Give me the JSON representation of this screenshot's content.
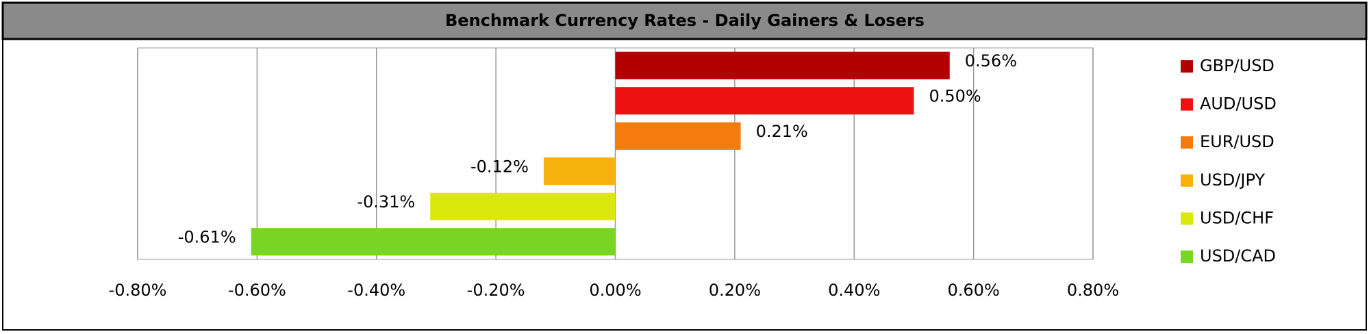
{
  "chart_data": {
    "type": "hbar",
    "title": "Benchmark Currency Rates - Daily Gainers & Losers",
    "categories": [
      "GBP/USD",
      "AUD/USD",
      "EUR/USD",
      "USD/JPY",
      "USD/CHF",
      "USD/CAD"
    ],
    "values": [
      0.56,
      0.5,
      0.21,
      -0.12,
      -0.31,
      -0.61
    ],
    "value_labels": [
      "0.56%",
      "0.50%",
      "0.21%",
      "-0.12%",
      "-0.31%",
      "-0.61%"
    ],
    "colors": [
      "#b30000",
      "#ee1111",
      "#f47b0c",
      "#f7b20c",
      "#dbe80c",
      "#78d622"
    ],
    "xlim": [
      -0.8,
      0.8
    ],
    "xticks": [
      {
        "value": -0.8,
        "label": "-0.80%"
      },
      {
        "value": -0.6,
        "label": "-0.60%"
      },
      {
        "value": -0.4,
        "label": "-0.40%"
      },
      {
        "value": -0.2,
        "label": "-0.20%"
      },
      {
        "value": 0,
        "label": "0.00%"
      },
      {
        "value": 0.2,
        "label": "0.20%"
      },
      {
        "value": 0.4,
        "label": "0.40%"
      },
      {
        "value": 0.6,
        "label": "0.60%"
      },
      {
        "value": 0.8,
        "label": "0.80%"
      }
    ],
    "grid": true,
    "legend": "right"
  }
}
